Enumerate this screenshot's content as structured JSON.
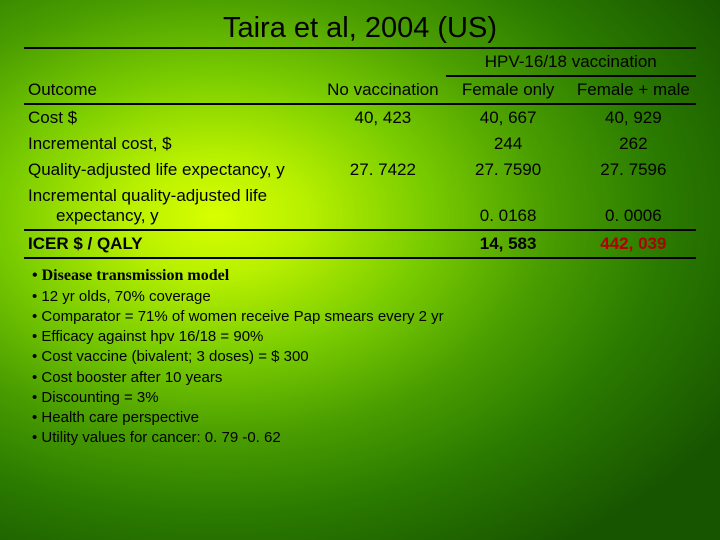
{
  "title": "Taira et al, 2004 (US)",
  "table": {
    "spanHeader": "HPV-16/18 vaccination",
    "headers": {
      "outcome": "Outcome",
      "c1": "No vaccination",
      "c2": "Female only",
      "c3": "Female + male"
    },
    "rows": [
      {
        "label": "Cost $",
        "c1": "40, 423",
        "c2": "40, 667",
        "c3": "40, 929"
      },
      {
        "label": "Incremental cost, $",
        "c1": "",
        "c2": "244",
        "c3": "262"
      },
      {
        "label": "Quality-adjusted life expectancy, y",
        "c1": "27. 7422",
        "c2": "27. 7590",
        "c3": "27. 7596"
      },
      {
        "label": "Incremental quality-adjusted life",
        "label2": "expectancy, y",
        "c1": "",
        "c2": "0. 0168",
        "c3": "0. 0006"
      }
    ],
    "icer": {
      "label": "ICER $ / QALY",
      "c1": "",
      "c2": "14, 583",
      "c3": "442, 039"
    }
  },
  "bullets": [
    {
      "text": "Disease transmission model",
      "bold": true
    },
    {
      "text": "12 yr olds, 70% coverage"
    },
    {
      "text": "Comparator = 71% of women receive Pap smears every 2 yr"
    },
    {
      "text": "Efficacy against hpv 16/18 = 90%"
    },
    {
      "text": "Cost vaccine (bivalent; 3 doses) = $ 300"
    },
    {
      "text": "Cost booster after 10 years"
    },
    {
      "text": "Discounting = 3%"
    },
    {
      "text": "Health care perspective"
    },
    {
      "text": "Utility values for cancer: 0. 79 -0. 62"
    }
  ],
  "colors": {
    "icer_highlight": "#b00000",
    "text": "#000000"
  }
}
